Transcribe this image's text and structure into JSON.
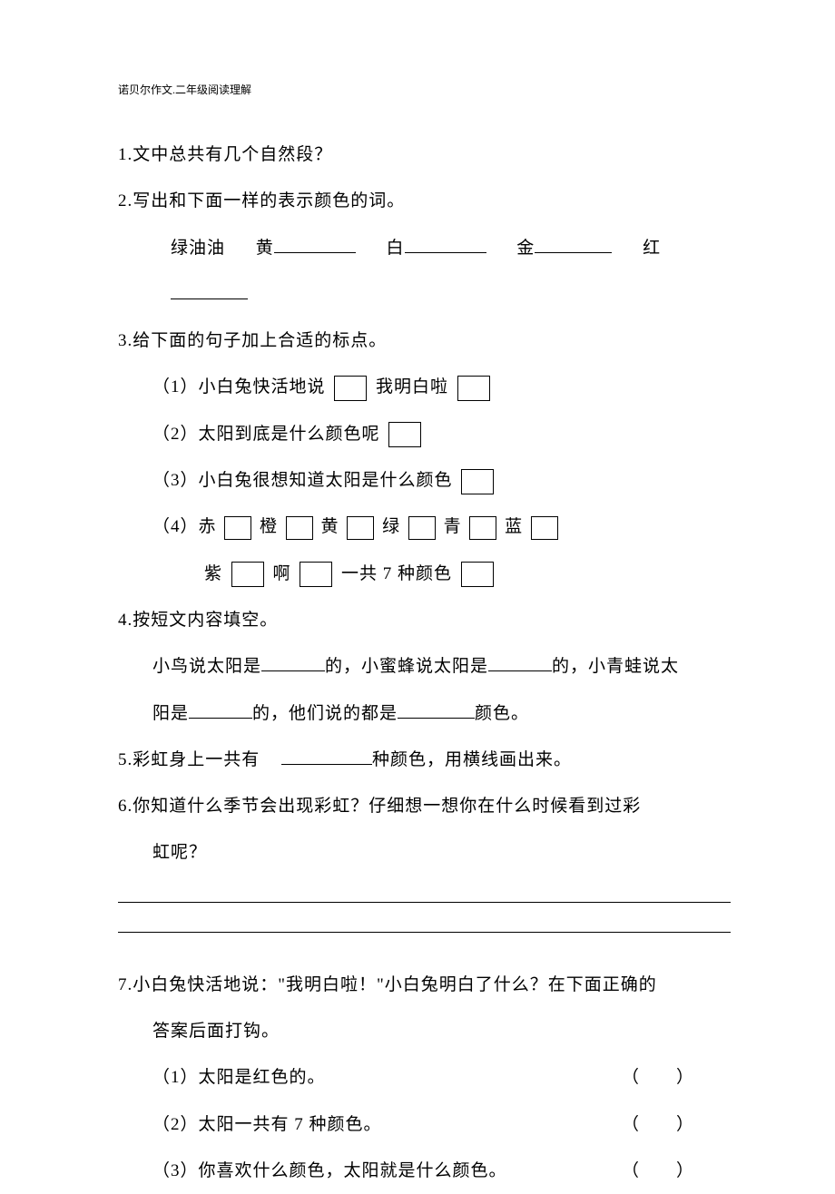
{
  "header": "诺贝尔作文.二年级阅读理解",
  "q1": "1.文中总共有几个自然段？",
  "q2": {
    "text": "2.写出和下面一样的表示颜色的词。",
    "sample": "绿油油",
    "colors": [
      "黄",
      "白",
      "金",
      "红"
    ]
  },
  "q3": {
    "text": "3.给下面的句子加上合适的标点。",
    "items": [
      {
        "prefix": "（1）",
        "parts": [
          "小白兔快活地说",
          "我明白啦"
        ]
      },
      {
        "prefix": "（2）",
        "parts": [
          "太阳到底是什么颜色呢"
        ]
      },
      {
        "prefix": "（3）",
        "parts": [
          "小白兔很想知道太阳是什么颜色"
        ]
      },
      {
        "prefix": "（4）",
        "parts": [
          "赤",
          "橙",
          "黄",
          "绿",
          "青",
          "蓝"
        ],
        "line2": [
          "紫",
          "啊",
          "一共 7 种颜色"
        ]
      }
    ]
  },
  "q4": {
    "text": "4.按短文内容填空。",
    "line1_a": "小鸟说太阳是",
    "line1_b": "的，小蜜蜂说太阳是",
    "line1_c": "的，小青蛙说太",
    "line2_a": "阳是",
    "line2_b": "的，他们说的都是",
    "line2_c": "颜色。"
  },
  "q5": {
    "a": "5.彩虹身上一共有",
    "b": "种颜色，用横线画出来。"
  },
  "q6": {
    "a": "6.你知道什么季节会出现彩虹？仔细想一想你在什么时候看到过彩",
    "b": "虹呢？"
  },
  "q7": {
    "a": "7.小白兔快活地说：\"我明白啦！\"小白兔明白了什么？在下面正确的",
    "b": "答案后面打钩。",
    "options": [
      {
        "label": "（1）太阳是红色的。"
      },
      {
        "label": "（2）太阳一共有 7 种颜色。"
      },
      {
        "label": "（3）你喜欢什么颜色，太阳就是什么颜色。"
      }
    ],
    "paren": "（　　）"
  }
}
